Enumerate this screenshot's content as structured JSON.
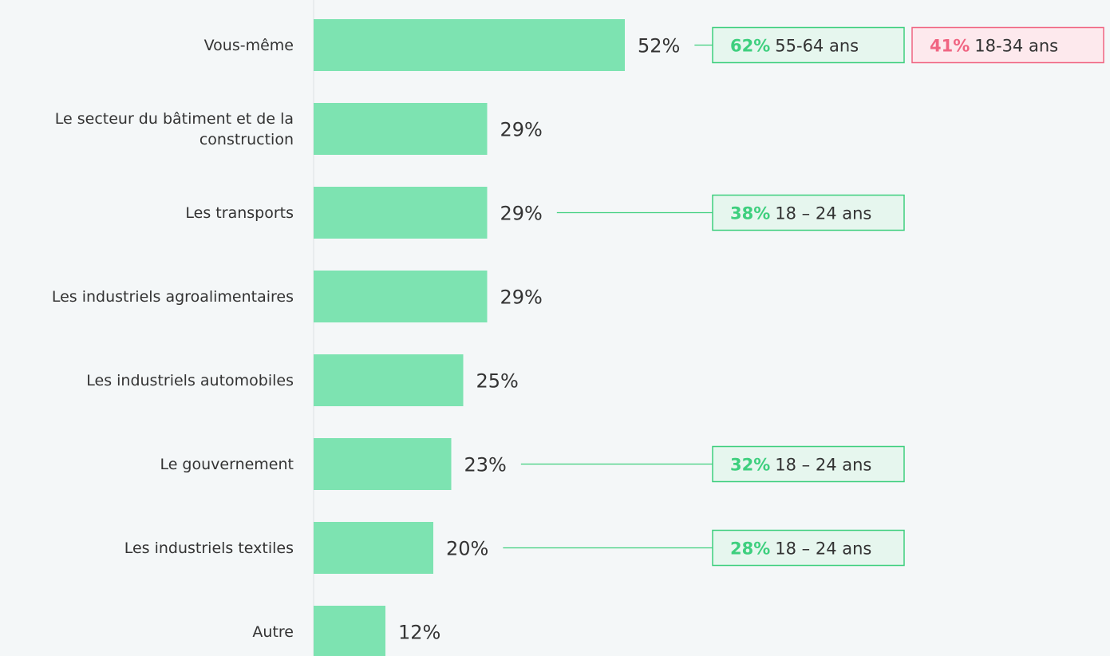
{
  "chart_data": {
    "type": "bar",
    "orientation": "horizontal",
    "categories": [
      "Vous-même",
      "Le secteur du bâtiment et de la construction",
      "Les transports",
      "Les industriels agroalimentaires",
      "Les industriels automobiles",
      "Le gouvernement",
      "Les industriels textiles",
      "Autre"
    ],
    "values": [
      52,
      29,
      29,
      29,
      25,
      23,
      20,
      12
    ],
    "value_labels": [
      "52%",
      "29%",
      "29%",
      "29%",
      "25%",
      "23%",
      "20%",
      "12%"
    ],
    "color": "#7de3b1",
    "xlim": [
      0,
      100
    ],
    "annotations": [
      [
        {
          "value": 62,
          "label": "62%",
          "group": "55-64 ans",
          "color": "#3ecf7e"
        },
        {
          "value": 41,
          "label": "41%",
          "group": "18-34 ans",
          "color": "#f06582"
        }
      ],
      null,
      [
        {
          "value": 38,
          "label": "38%",
          "group": "18 – 24 ans",
          "color": "#3ecf7e"
        }
      ],
      null,
      null,
      [
        {
          "value": 32,
          "label": "32%",
          "group": "18 – 24 ans",
          "color": "#3ecf7e"
        }
      ],
      [
        {
          "value": 28,
          "label": "28%",
          "group": "18 – 24 ans",
          "color": "#3ecf7e"
        }
      ],
      null
    ]
  }
}
